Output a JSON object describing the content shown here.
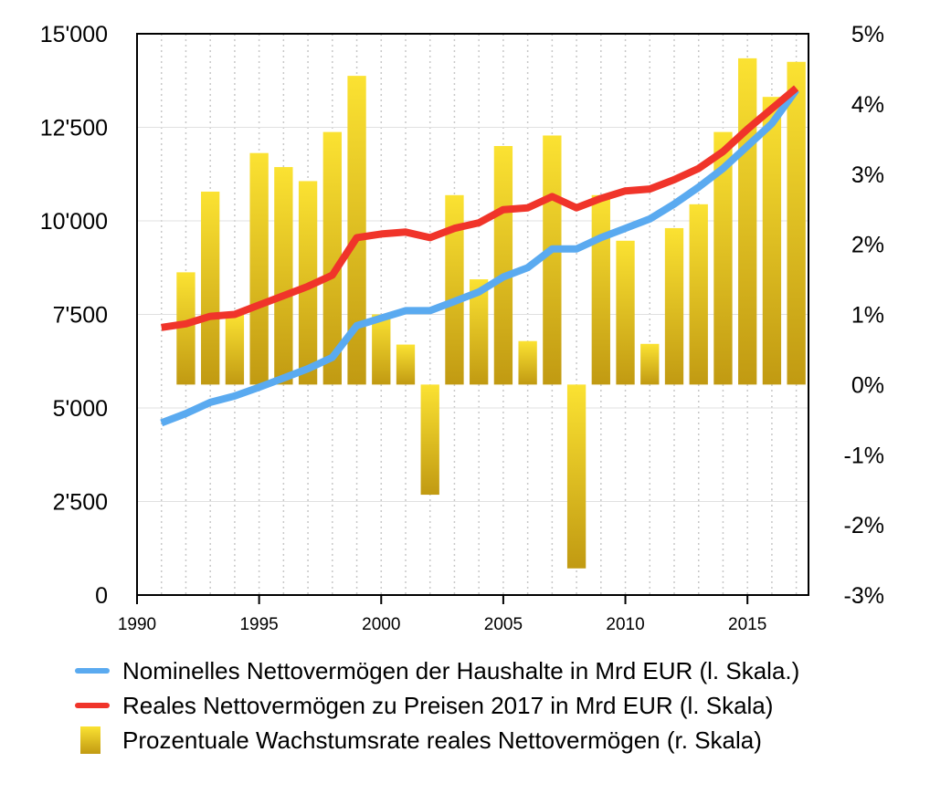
{
  "colors": {
    "nominal": "#5aaaf0",
    "real": "#f0342a",
    "bar_top": "#fbe232",
    "bar_bottom": "#c19a12",
    "grid": "#c8c8c8"
  },
  "chart_data": {
    "type": "bar",
    "x_ticks": [
      1990,
      1995,
      2000,
      2005,
      2010,
      2015
    ],
    "x_tick_labels": [
      "1990",
      "1995",
      "2000",
      "2005",
      "2010",
      "2015"
    ],
    "xlim": [
      1990,
      2017.5
    ],
    "left_axis": {
      "ylim": [
        0,
        15000
      ],
      "ticks": [
        "0",
        "2'500",
        "5'000",
        "7'500",
        "10'000",
        "12'500",
        "15'000"
      ]
    },
    "right_axis": {
      "ylim": [
        -3,
        5
      ],
      "ticks": [
        "-3%",
        "-2%",
        "-1%",
        "0%",
        "1%",
        "2%",
        "3%",
        "4%",
        "5%"
      ]
    },
    "grid": true,
    "legend_position": "bottom",
    "series": [
      {
        "name": "Nominelles Nettovermögen der Haushalte in Mrd EUR (l. Skala.)",
        "type": "line",
        "axis": "left",
        "x": [
          1991,
          1992,
          1993,
          1994,
          1995,
          1996,
          1997,
          1998,
          1999,
          2000,
          2001,
          2002,
          2003,
          2004,
          2005,
          2006,
          2007,
          2008,
          2009,
          2010,
          2011,
          2012,
          2013,
          2014,
          2015,
          2016,
          2017
        ],
        "values": [
          4600,
          4850,
          5150,
          5320,
          5550,
          5800,
          6050,
          6350,
          7200,
          7400,
          7600,
          7600,
          7850,
          8100,
          8500,
          8750,
          9250,
          9250,
          9550,
          9800,
          10050,
          10450,
          10900,
          11400,
          12000,
          12600,
          13500
        ]
      },
      {
        "name": "Reales Nettovermögen zu Preisen 2017 in Mrd EUR (l. Skala)",
        "type": "line",
        "axis": "left",
        "x": [
          1991,
          1992,
          1993,
          1994,
          1995,
          1996,
          1997,
          1998,
          1999,
          2000,
          2001,
          2002,
          2003,
          2004,
          2005,
          2006,
          2007,
          2008,
          2009,
          2010,
          2011,
          2012,
          2013,
          2014,
          2015,
          2016,
          2017
        ],
        "values": [
          7150,
          7250,
          7450,
          7500,
          7750,
          8000,
          8250,
          8550,
          9550,
          9650,
          9700,
          9550,
          9800,
          9950,
          10300,
          10350,
          10650,
          10350,
          10600,
          10800,
          10850,
          11100,
          11400,
          11850,
          12450,
          13000,
          13550
        ]
      },
      {
        "name": "Prozentuale Wachstumsrate reales Nettovermögen (r. Skala)",
        "type": "bar",
        "axis": "right",
        "x": [
          1992,
          1993,
          1994,
          1995,
          1996,
          1997,
          1998,
          1999,
          2000,
          2001,
          2002,
          2003,
          2004,
          2005,
          2006,
          2007,
          2008,
          2009,
          2010,
          2011,
          2012,
          2013,
          2014,
          2015,
          2016,
          2017
        ],
        "values": [
          1.6,
          2.75,
          1.0,
          3.3,
          3.1,
          2.9,
          3.6,
          4.4,
          1.0,
          0.57,
          -1.57,
          2.7,
          1.5,
          3.4,
          0.62,
          3.55,
          -2.62,
          2.7,
          2.05,
          0.58,
          2.23,
          2.57,
          3.6,
          4.65,
          4.1,
          4.6
        ]
      }
    ]
  }
}
